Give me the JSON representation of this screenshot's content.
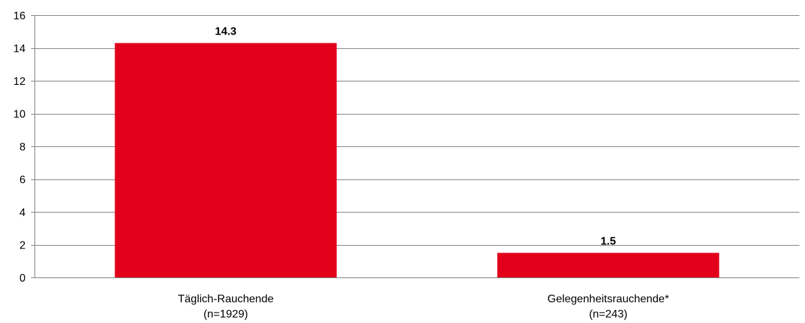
{
  "chart_data": {
    "type": "bar",
    "categories": [
      [
        "Täglich-Rauchende",
        "(n=1929)"
      ],
      [
        "Gelegenheitsrauchende*",
        "(n=243)"
      ]
    ],
    "values": [
      14.3,
      1.5
    ],
    "data_labels": [
      "14.3",
      "1.5"
    ],
    "ylim": [
      0,
      16
    ],
    "yticks": [
      0,
      2,
      4,
      6,
      8,
      10,
      12,
      14,
      16
    ],
    "grid": true,
    "legend": "none",
    "title": "",
    "xlabel": "",
    "ylabel": "",
    "bar_color": "#E2001A",
    "grid_color": "#808080",
    "axis_color": "#808080"
  }
}
